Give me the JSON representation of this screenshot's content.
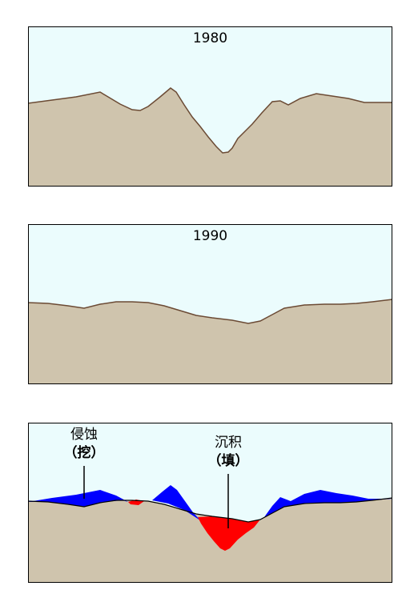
{
  "panels": {
    "p1980": {
      "year": "1980"
    },
    "p1990": {
      "year": "1990"
    }
  },
  "callouts": {
    "erosion": {
      "term": "侵蚀",
      "action": "（挖）"
    },
    "deposition": {
      "term": "沉积",
      "action": "（填）"
    }
  },
  "colors": {
    "sky": "#ebfcfd",
    "ground": "#cfc4ad",
    "profile_line": "#6b4a34",
    "erosion": "#0000ff",
    "deposition": "#ff0000",
    "frame": "#000000"
  }
}
